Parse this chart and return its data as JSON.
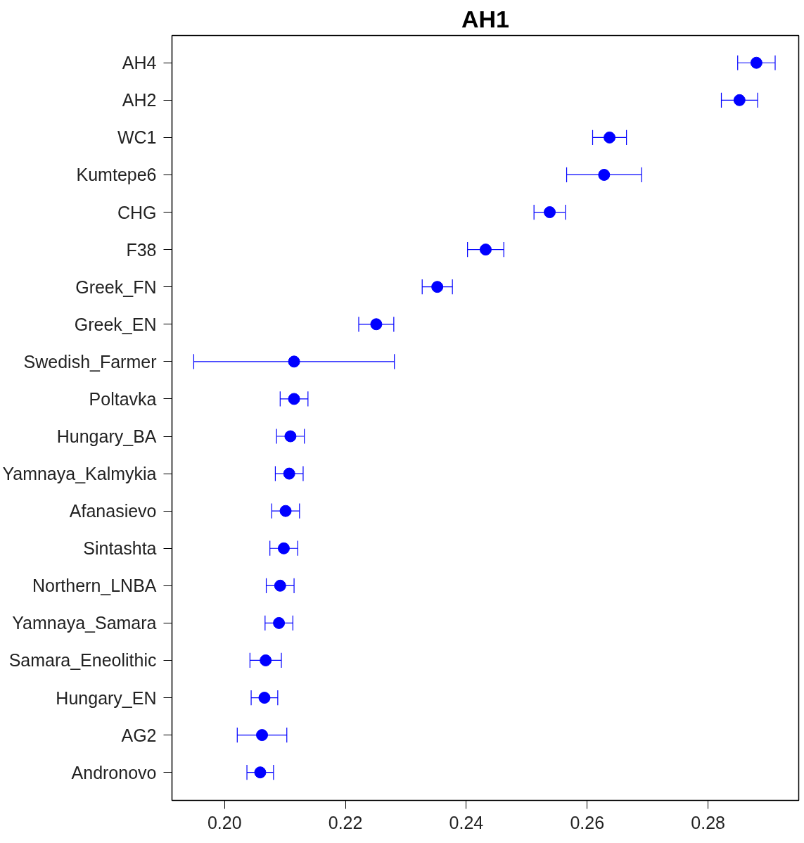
{
  "chart_data": {
    "type": "scatter",
    "title": "AH1",
    "orientation": "horizontal",
    "categories": [
      "AH4",
      "AH2",
      "WC1",
      "Kumtepe6",
      "CHG",
      "F38",
      "Greek_FN",
      "Greek_EN",
      "Swedish_Farmer",
      "Poltavka",
      "Hungary_BA",
      "Yamnaya_Kalmykia",
      "Afanasievo",
      "Sintashta",
      "Northern_LNBA",
      "Yamnaya_Samara",
      "Samara_Eneolithic",
      "Hungary_EN",
      "AG2",
      "Andronovo"
    ],
    "series": [
      {
        "color": "#0000ff",
        "values": [
          0.288,
          0.2852,
          0.2637,
          0.2628,
          0.2538,
          0.2432,
          0.2352,
          0.2251,
          0.2115,
          0.2115,
          0.2109,
          0.2107,
          0.2101,
          0.2098,
          0.2092,
          0.209,
          0.2068,
          0.2066,
          0.2062,
          0.2059
        ],
        "errors": [
          0.0031,
          0.003,
          0.0028,
          0.0062,
          0.0026,
          0.003,
          0.0025,
          0.0029,
          0.0166,
          0.0023,
          0.0023,
          0.0023,
          0.0023,
          0.0023,
          0.0023,
          0.0023,
          0.0026,
          0.0022,
          0.0041,
          0.0022
        ]
      }
    ],
    "xlim": [
      0.1913,
      0.295
    ],
    "xticks": [
      {
        "value": 0.2,
        "label": "0.20"
      },
      {
        "value": 0.22,
        "label": "0.22"
      },
      {
        "value": 0.24,
        "label": "0.24"
      },
      {
        "value": 0.26,
        "label": "0.26"
      },
      {
        "value": 0.28,
        "label": "0.28"
      }
    ],
    "marker": "circle"
  }
}
